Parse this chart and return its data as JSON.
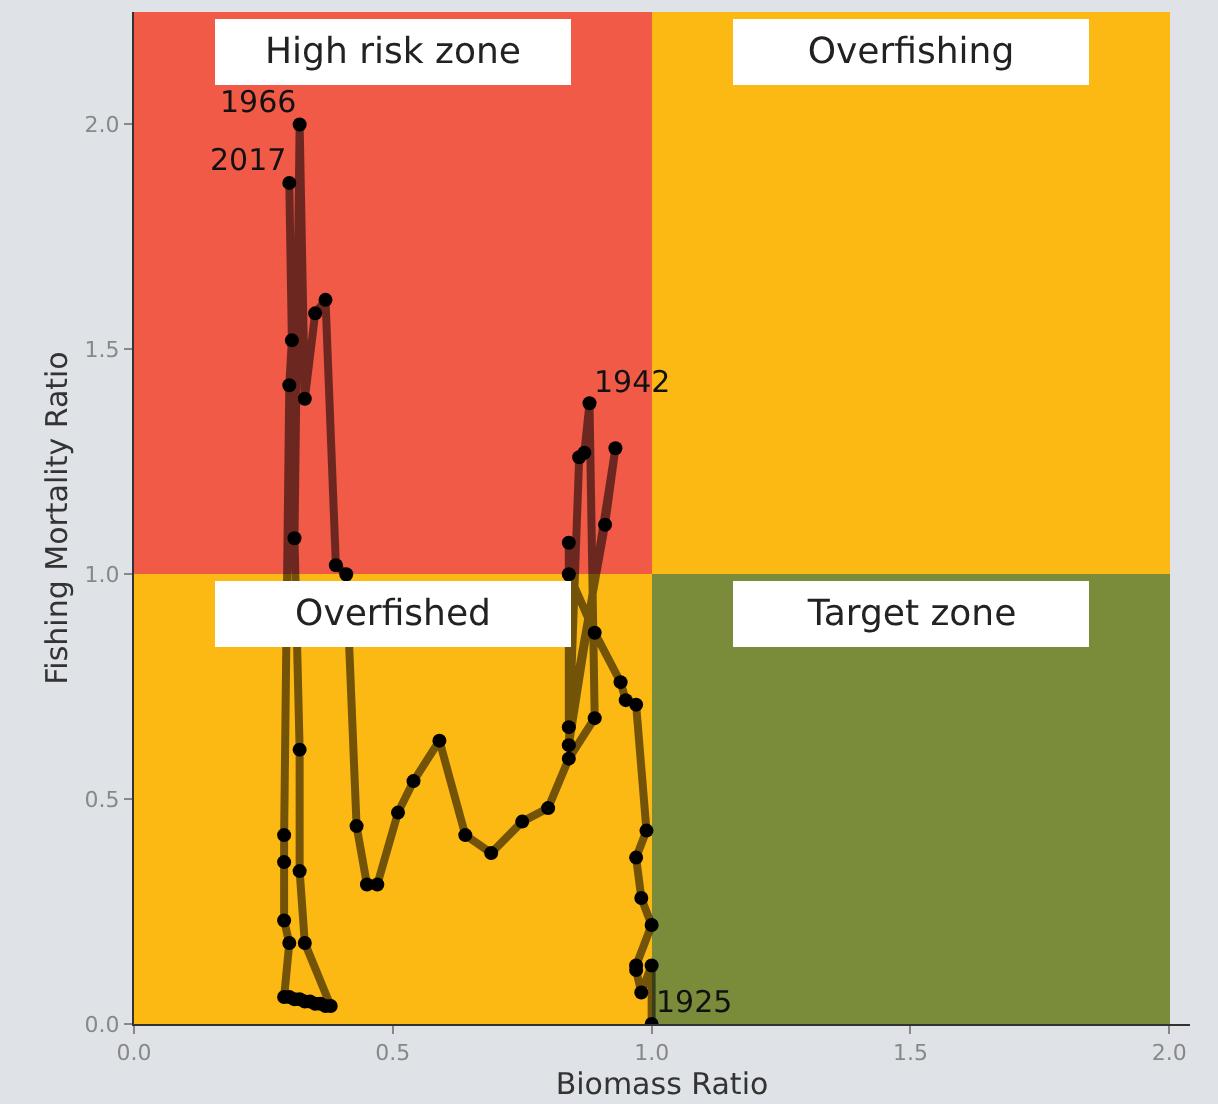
{
  "chart_data": {
    "type": "line",
    "xlabel": "Biomass Ratio",
    "ylabel": "Fishing Mortality Ratio",
    "xlim": [
      0,
      2.04
    ],
    "ylim": [
      0,
      2.25
    ],
    "xticks": [
      {
        "value": 0,
        "label": "0.0"
      },
      0.5,
      {
        "value": 1,
        "label": "1.0"
      },
      1.5,
      {
        "value": 2,
        "label": "2.0"
      }
    ],
    "yticks": [
      {
        "value": 0,
        "label": "0.0"
      },
      0.5,
      {
        "value": 1,
        "label": "1.0"
      },
      1.5,
      {
        "value": 2,
        "label": "2.0"
      }
    ],
    "grid": false,
    "marker": "circle",
    "line_style": "solid",
    "stacked": true,
    "series": [
      {
        "type": "bar",
        "x": [
          0.5,
          1.5
        ],
        "values": [
          1,
          1
        ],
        "colors": [
          "#fdb913",
          "#7a8c3a"
        ]
      },
      {
        "type": "bar",
        "x": [
          0.5,
          1.5
        ],
        "values": [
          1.25,
          1.25
        ],
        "colors": [
          "#f05a47",
          "#fdb913"
        ]
      },
      {
        "color": "#000000",
        "x": [
          1.0,
          1.0,
          0.98,
          0.97,
          0.97,
          1.0,
          0.98,
          0.97,
          0.99,
          0.97,
          0.95,
          0.94,
          0.89,
          0.84,
          0.84,
          0.84,
          0.91,
          0.93,
          0.84,
          0.86,
          0.87,
          0.88,
          0.89,
          0.84,
          0.8,
          0.75,
          0.69,
          0.64,
          0.59,
          0.54,
          0.51,
          0.47,
          0.45,
          0.43,
          0.41,
          0.39,
          0.37,
          0.35,
          0.33,
          0.32,
          0.31,
          0.32,
          0.32,
          0.33,
          0.38,
          0.37,
          0.36,
          0.35,
          0.34,
          0.33,
          0.32,
          0.31,
          0.3,
          0.29,
          0.3,
          0.29,
          0.29,
          0.29,
          0.3,
          0.305,
          0.3
        ],
        "values": [
          0.0,
          0.13,
          0.07,
          0.12,
          0.13,
          0.22,
          0.28,
          0.37,
          0.43,
          0.71,
          0.72,
          0.76,
          0.87,
          1.0,
          1.07,
          0.66,
          1.11,
          1.28,
          0.62,
          1.26,
          1.27,
          1.38,
          0.68,
          0.59,
          0.48,
          0.45,
          0.38,
          0.42,
          0.63,
          0.54,
          0.47,
          0.31,
          0.31,
          0.44,
          1.0,
          1.02,
          1.61,
          1.58,
          1.39,
          2.0,
          1.08,
          0.61,
          0.34,
          0.18,
          0.04,
          0.04,
          0.045,
          0.045,
          0.05,
          0.05,
          0.055,
          0.055,
          0.06,
          0.06,
          0.18,
          0.23,
          0.36,
          0.42,
          1.42,
          1.52,
          1.87
        ]
      }
    ],
    "annotations": [
      "High risk zone",
      "Overfishing",
      "Overfished",
      "Target zone",
      {
        "text": "1925",
        "x": 1.0,
        "y": 0.0
      },
      {
        "text": "1942",
        "x": 0.88,
        "y": 1.38
      },
      {
        "text": "1966",
        "x": 0.32,
        "y": 2.0
      },
      {
        "text": "2017",
        "x": 0.3,
        "y": 1.87
      }
    ]
  }
}
